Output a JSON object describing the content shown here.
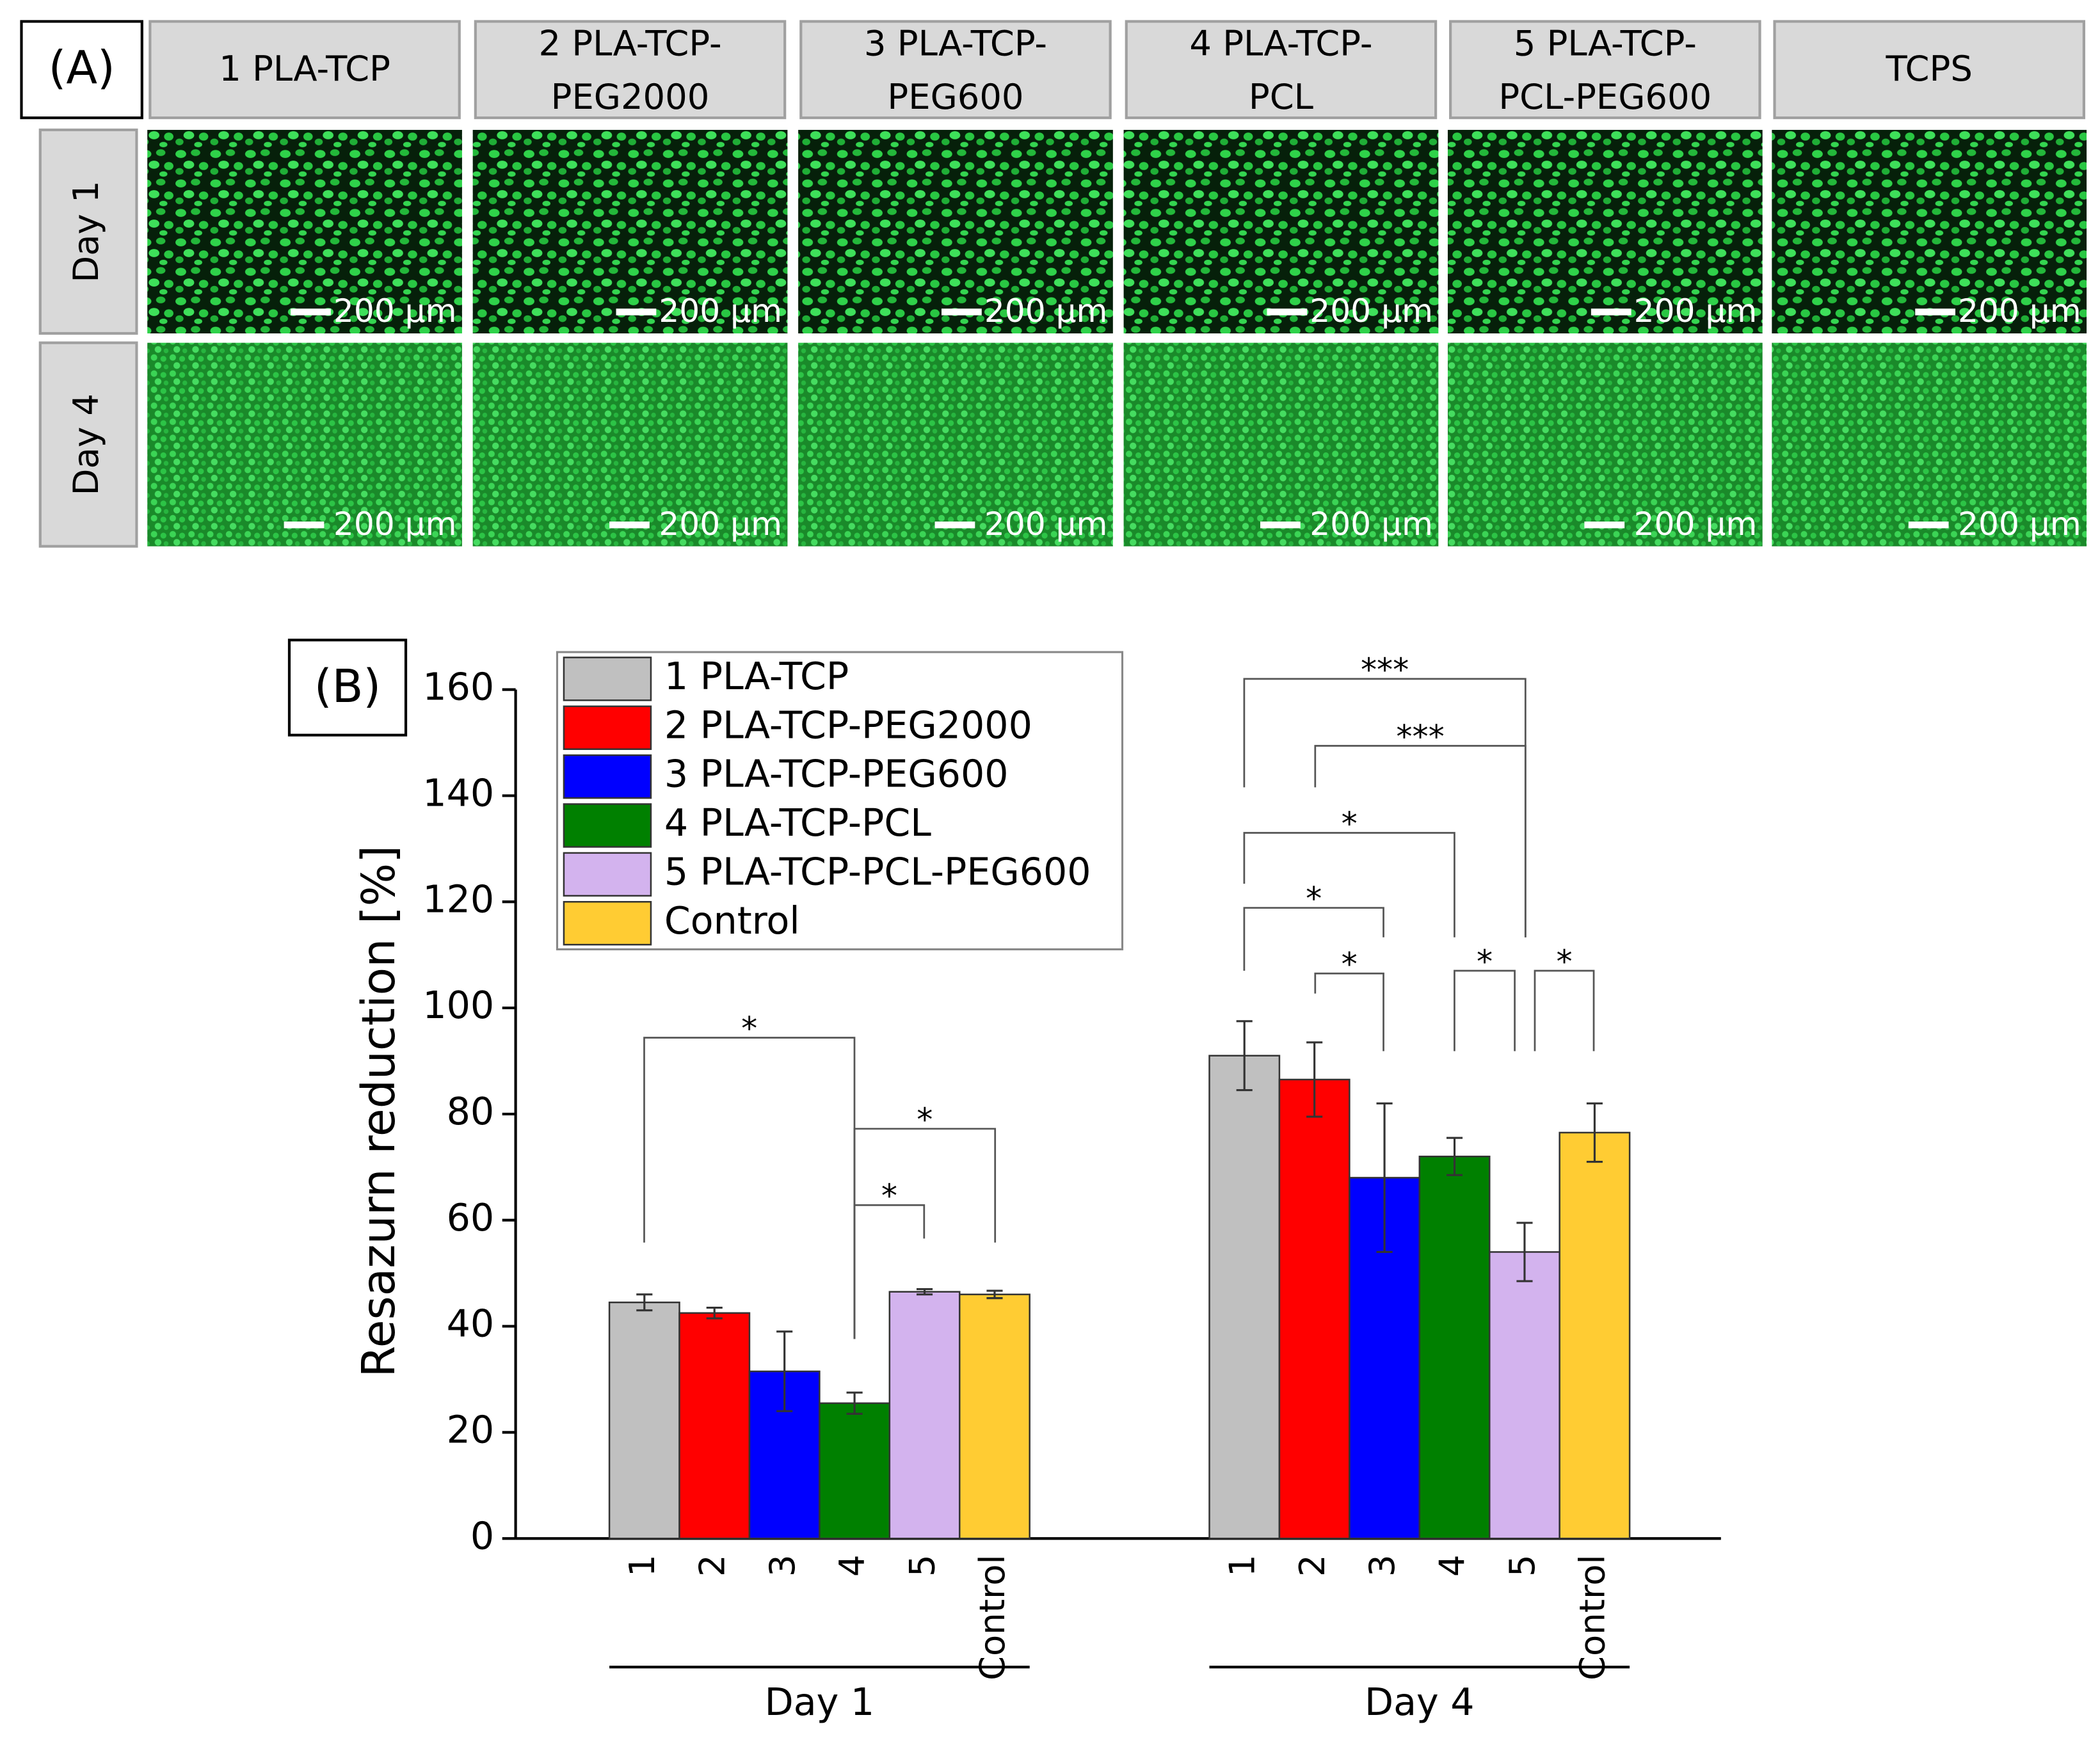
{
  "panel_a": {
    "label": "(A)",
    "columns": [
      [
        "1 PLA-TCP"
      ],
      [
        "2 PLA-TCP-",
        "PEG2000"
      ],
      [
        "3 PLA-TCP-",
        "PEG600"
      ],
      [
        "4 PLA-TCP-",
        "PCL"
      ],
      [
        "5 PLA-TCP-",
        "PCL-PEG600"
      ],
      [
        "TCPS"
      ]
    ],
    "rows": [
      "Day 1",
      "Day 4"
    ],
    "scale_bar": "200 µm"
  },
  "chart_data": {
    "type": "bar",
    "panel_label": "(B)",
    "ylabel": "Resazurn reduction [%]",
    "categories": [
      "Day 1",
      "Day 4"
    ],
    "bar_labels": [
      "1",
      "2",
      "3",
      "4",
      "5",
      "Control"
    ],
    "series": [
      {
        "name": "1 PLA-TCP",
        "color": "#c0c0c0",
        "values": [
          44.5,
          91
        ],
        "errors": [
          1.5,
          6.5
        ]
      },
      {
        "name": "2 PLA-TCP-PEG2000",
        "color": "#ff0000",
        "values": [
          42.5,
          86.5
        ],
        "errors": [
          1,
          7
        ]
      },
      {
        "name": "3 PLA-TCP-PEG600",
        "color": "#0000ff",
        "values": [
          31.5,
          68
        ],
        "errors": [
          7.5,
          14
        ]
      },
      {
        "name": "4 PLA-TCP-PCL",
        "color": "#008000",
        "values": [
          25.5,
          72
        ],
        "errors": [
          2,
          3.5
        ]
      },
      {
        "name": "5 PLA-TCP-PCL-PEG600",
        "color": "#d3b3ee",
        "values": [
          46.5,
          54
        ],
        "errors": [
          0.5,
          5.5
        ]
      },
      {
        "name": "Control",
        "color": "#ffcc33",
        "values": [
          46,
          76.5
        ],
        "errors": [
          0.7,
          5.5
        ]
      }
    ],
    "ylim": [
      0,
      160
    ],
    "yticks": [
      0,
      20,
      40,
      60,
      80,
      100,
      120,
      140,
      160
    ],
    "legend": "upper left",
    "annotations": [
      "*",
      "*",
      "*",
      "***",
      "***",
      "*",
      "*",
      "*",
      "*",
      "*"
    ]
  }
}
